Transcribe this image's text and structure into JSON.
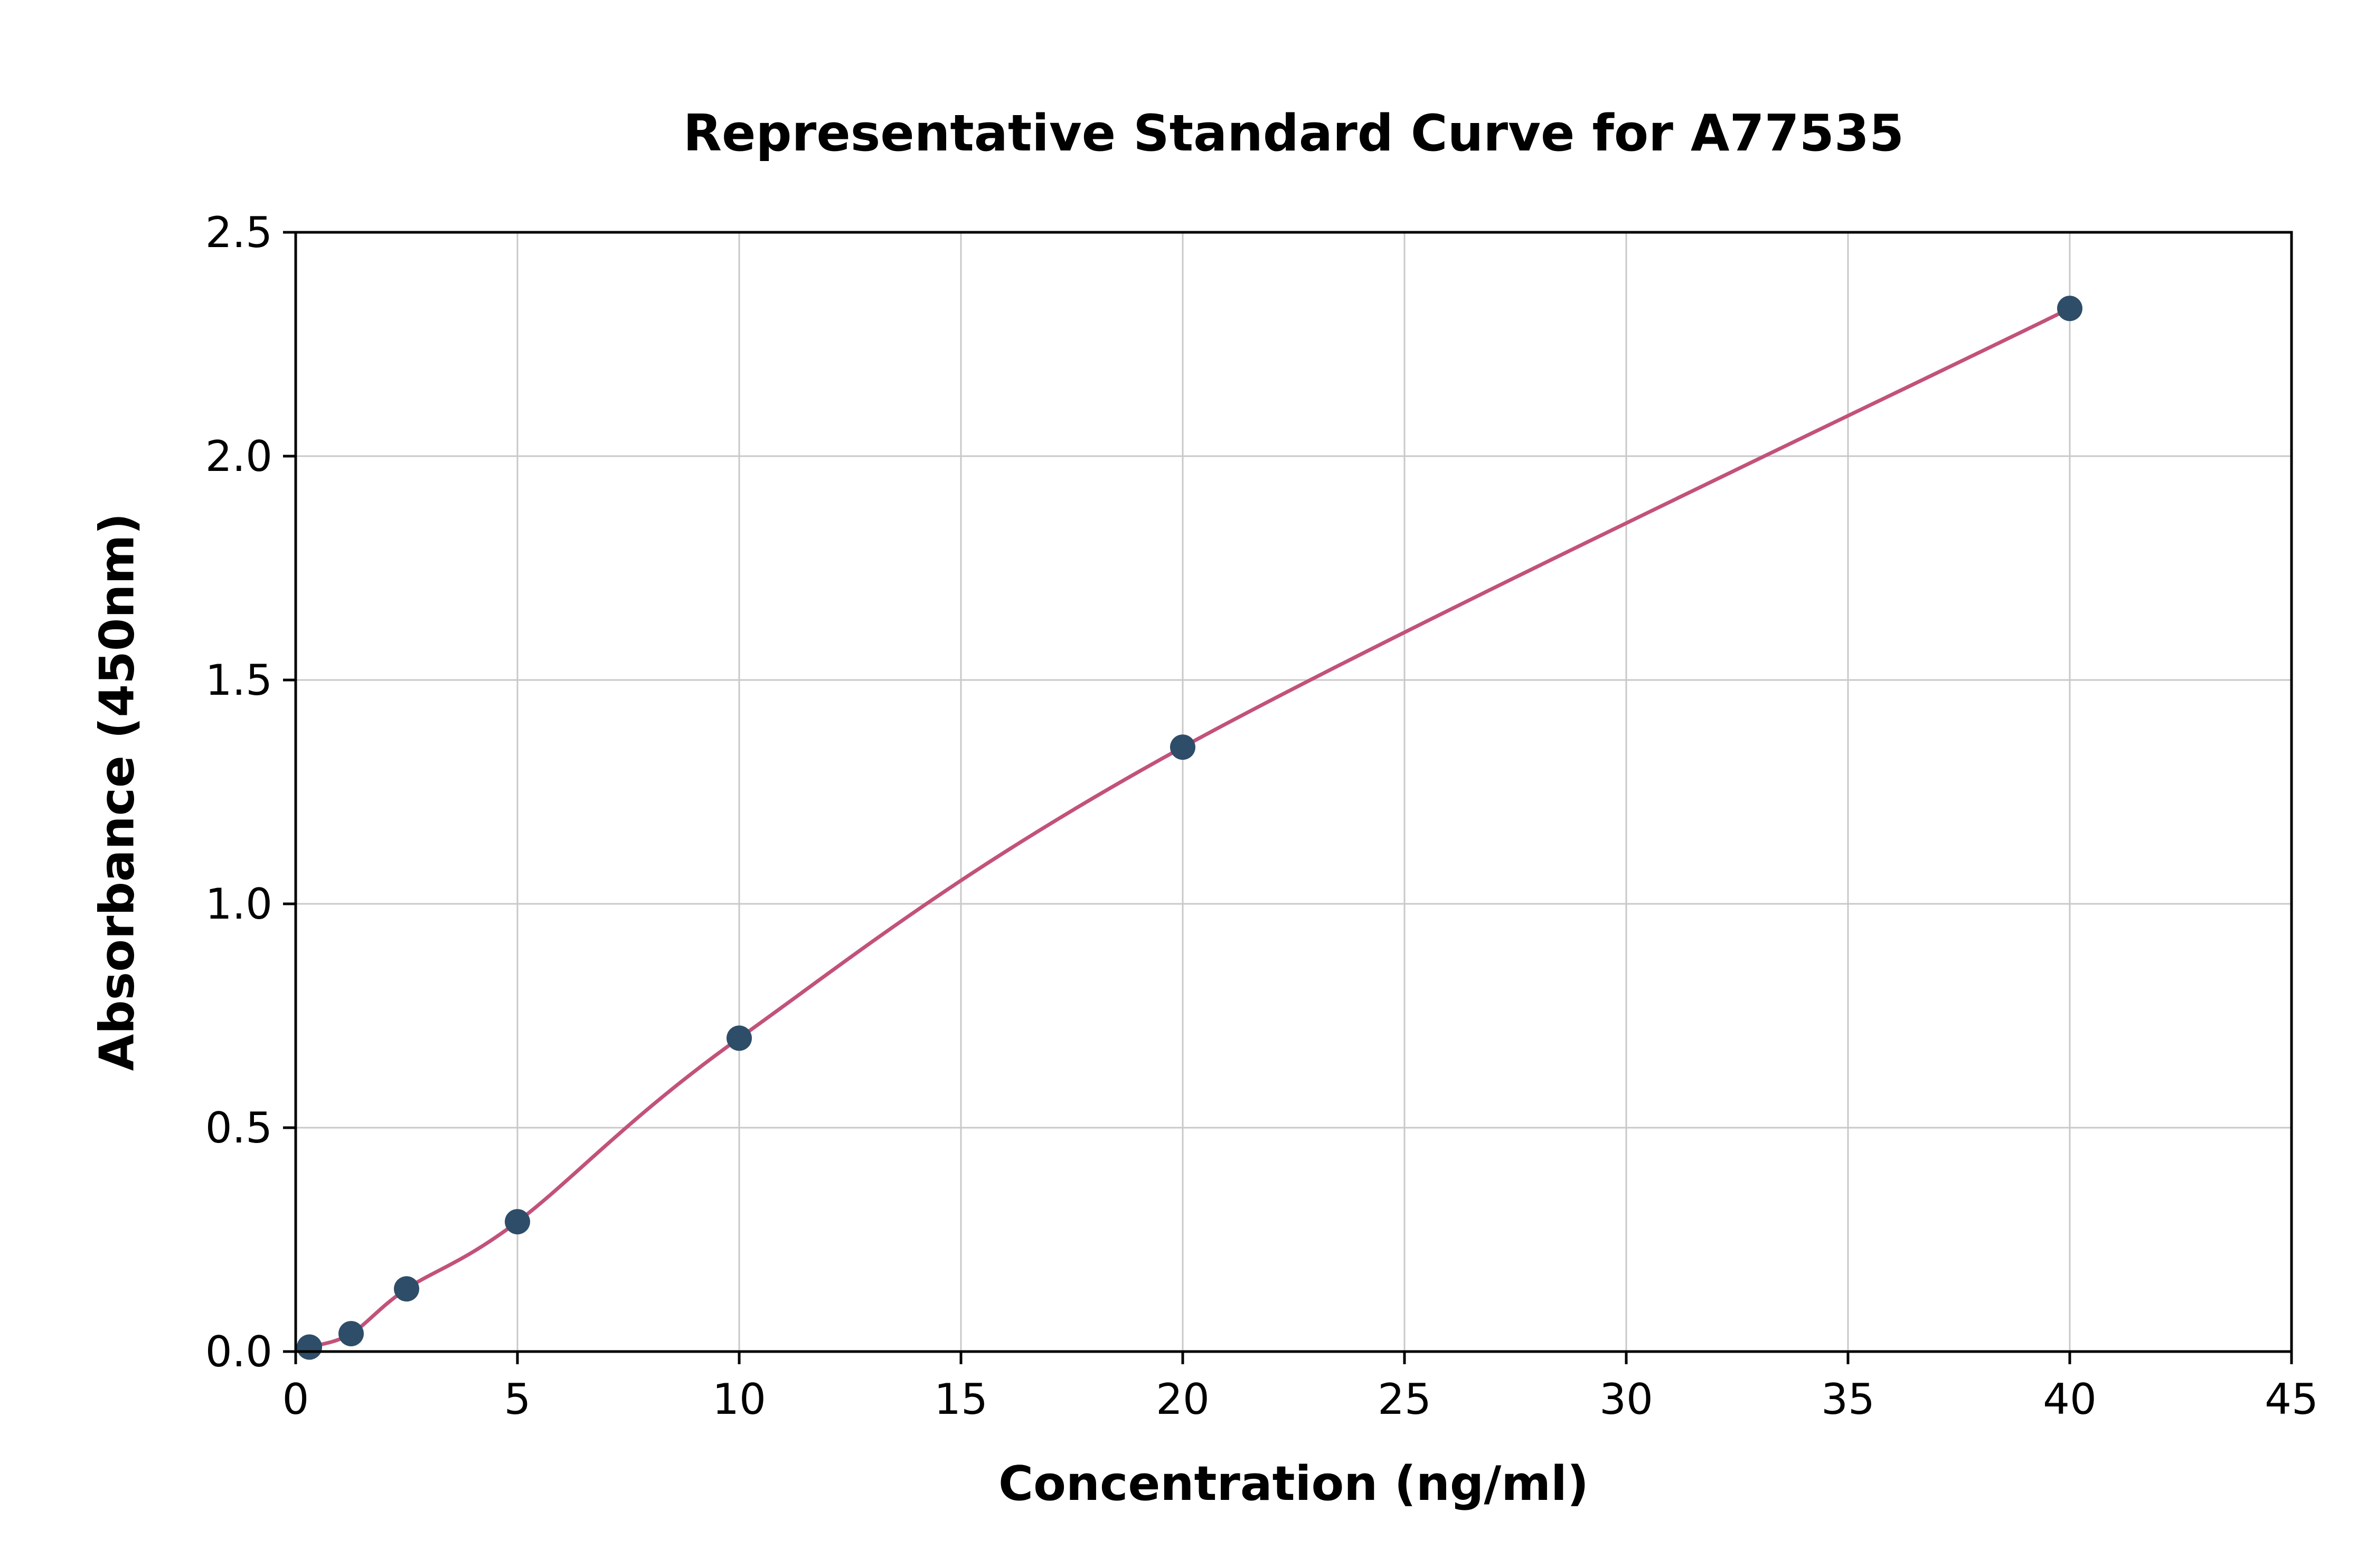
{
  "chart_data": {
    "type": "scatter",
    "title": "Representative Standard Curve for A77535",
    "xlabel": "Concentration (ng/ml)",
    "ylabel": "Absorbance (450nm)",
    "xlim": [
      0,
      45
    ],
    "ylim": [
      0,
      2.5
    ],
    "grid": true,
    "legend": "none",
    "x_ticks": [
      0,
      5,
      10,
      15,
      20,
      25,
      30,
      35,
      40,
      45
    ],
    "x_tick_labels": [
      "0",
      "5",
      "10",
      "15",
      "20",
      "25",
      "30",
      "35",
      "40",
      "45"
    ],
    "y_ticks": [
      0.0,
      0.5,
      1.0,
      1.5,
      2.0,
      2.5
    ],
    "y_tick_labels": [
      "0.0",
      "0.5",
      "1.0",
      "1.5",
      "2.0",
      "2.5"
    ],
    "points": [
      {
        "x": 0.31,
        "y": 0.01
      },
      {
        "x": 1.25,
        "y": 0.04
      },
      {
        "x": 2.5,
        "y": 0.14
      },
      {
        "x": 5,
        "y": 0.29
      },
      {
        "x": 10,
        "y": 0.7
      },
      {
        "x": 20,
        "y": 1.35
      },
      {
        "x": 40,
        "y": 2.33
      }
    ],
    "curve_color": "#c2527a",
    "point_color": "#2e4d68",
    "grid_color": "#c9c9c9",
    "axis_color": "#000000"
  }
}
